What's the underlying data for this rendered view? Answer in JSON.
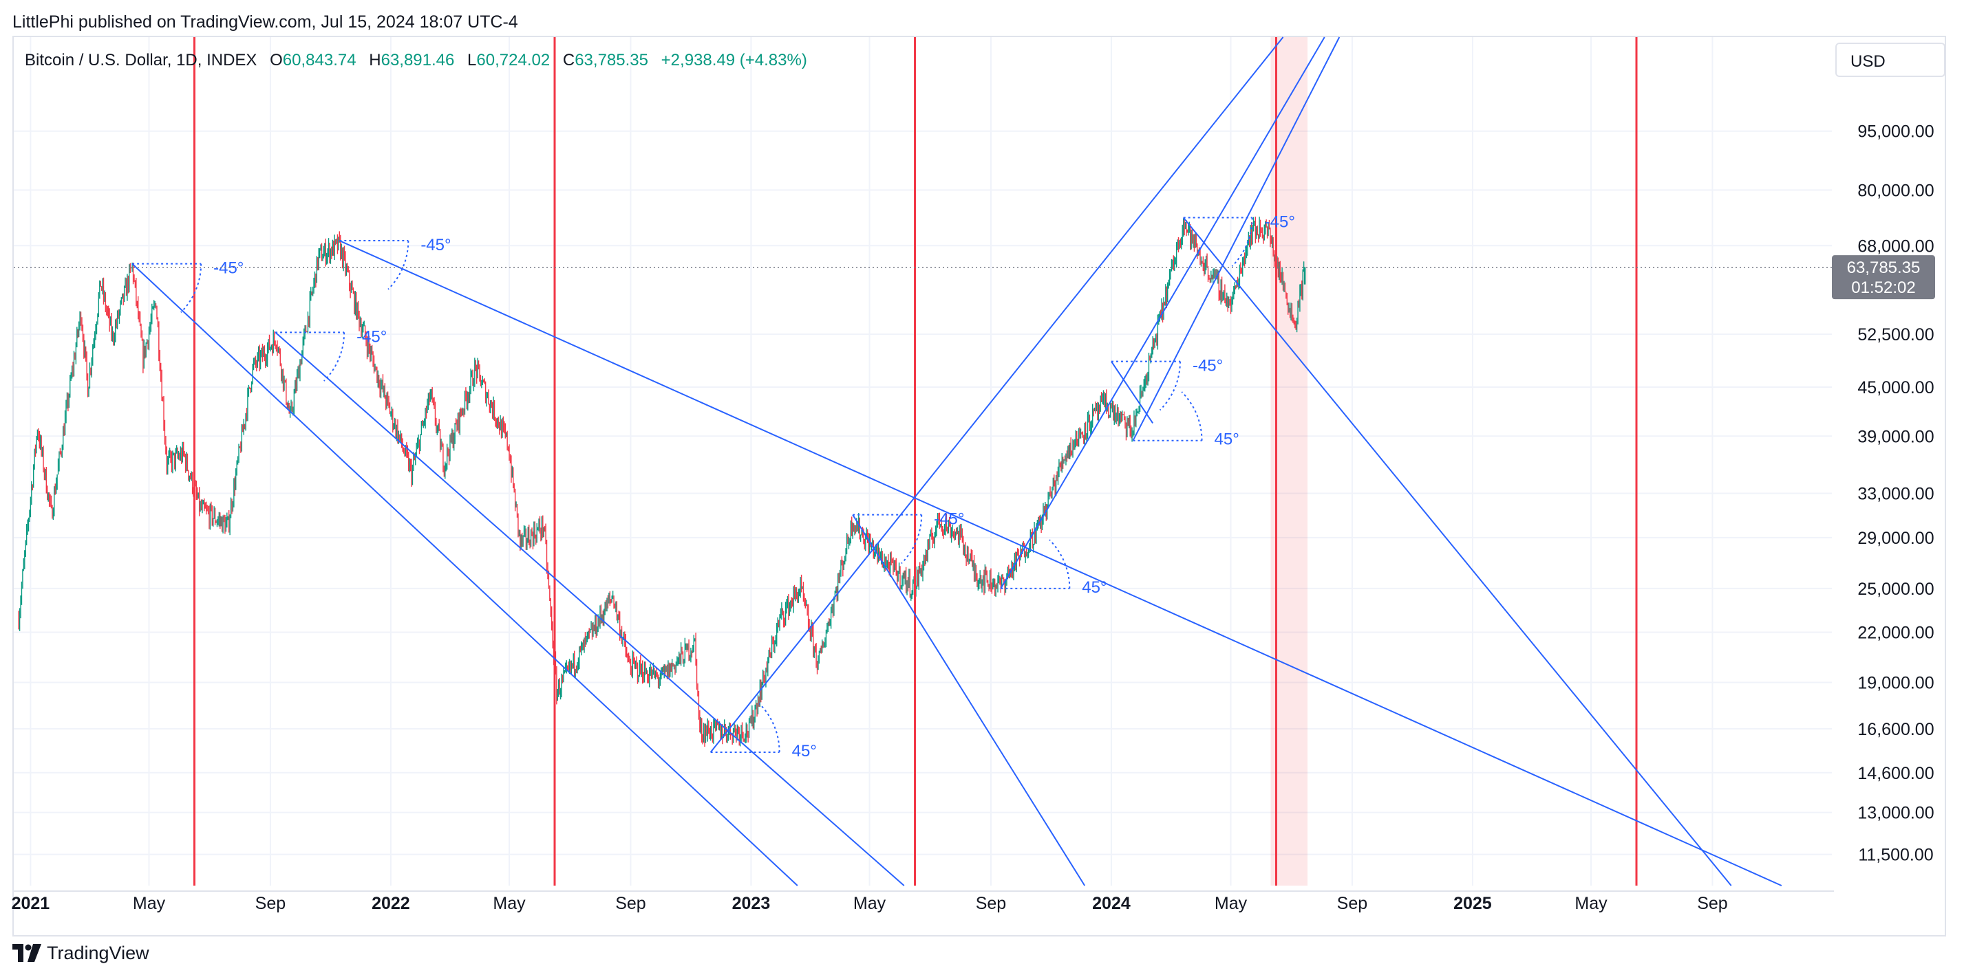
{
  "header": {
    "publisher_line": "LittlePhi published on TradingView.com, Jul 15, 2024 18:07 UTC-4"
  },
  "ohlc": {
    "symbol": "Bitcoin / U.S. Dollar, 1D, INDEX",
    "open_label": "O",
    "open": "60,843.74",
    "high_label": "H",
    "high": "63,891.46",
    "low_label": "L",
    "low": "60,724.02",
    "close_label": "C",
    "close": "63,785.35",
    "change": "+2,938.49 (+4.83%)"
  },
  "currency": "USD",
  "price_tag": {
    "price": "63,785.35",
    "countdown": "01:52:02"
  },
  "footer": {
    "brand": "TradingView"
  },
  "colors": {
    "up": "#089981",
    "down": "#f23645",
    "cycle_line": "#f23645",
    "trend_line": "#2962ff",
    "grid": "#f0f3fa",
    "axis_text": "#131722",
    "price_tag_bg": "#787b86",
    "highlight": "rgba(242,54,69,0.12)"
  },
  "chart_data": {
    "type": "candlestick",
    "title": "Bitcoin / U.S. Dollar, 1D, INDEX",
    "scale": "log",
    "ylim": [
      10500,
      125000
    ],
    "xlim": [
      "2020-12-15",
      "2025-12-31"
    ],
    "y_ticks": [
      {
        "value": 95000,
        "label": "95,000.00"
      },
      {
        "value": 80000,
        "label": "80,000.00"
      },
      {
        "value": 68000,
        "label": "68,000.00"
      },
      {
        "value": 52500,
        "label": "52,500.00"
      },
      {
        "value": 45000,
        "label": "45,000.00"
      },
      {
        "value": 39000,
        "label": "39,000.00"
      },
      {
        "value": 33000,
        "label": "33,000.00"
      },
      {
        "value": 29000,
        "label": "29,000.00"
      },
      {
        "value": 25000,
        "label": "25,000.00"
      },
      {
        "value": 22000,
        "label": "22,000.00"
      },
      {
        "value": 19000,
        "label": "19,000.00"
      },
      {
        "value": 16600,
        "label": "16,600.00"
      },
      {
        "value": 14600,
        "label": "14,600.00"
      },
      {
        "value": 13000,
        "label": "13,000.00"
      },
      {
        "value": 11500,
        "label": "11,500.00"
      }
    ],
    "x_ticks": [
      {
        "date": "2021-01-01",
        "label": "2021",
        "bold": true
      },
      {
        "date": "2021-05-01",
        "label": "May",
        "bold": false
      },
      {
        "date": "2021-09-01",
        "label": "Sep",
        "bold": false
      },
      {
        "date": "2022-01-01",
        "label": "2022",
        "bold": true
      },
      {
        "date": "2022-05-01",
        "label": "May",
        "bold": false
      },
      {
        "date": "2022-09-01",
        "label": "Sep",
        "bold": false
      },
      {
        "date": "2023-01-01",
        "label": "2023",
        "bold": true
      },
      {
        "date": "2023-05-01",
        "label": "May",
        "bold": false
      },
      {
        "date": "2023-09-01",
        "label": "Sep",
        "bold": false
      },
      {
        "date": "2024-01-01",
        "label": "2024",
        "bold": true
      },
      {
        "date": "2024-05-01",
        "label": "May",
        "bold": false
      },
      {
        "date": "2024-09-01",
        "label": "Sep",
        "bold": false
      },
      {
        "date": "2025-01-01",
        "label": "2025",
        "bold": true
      },
      {
        "date": "2025-05-01",
        "label": "May",
        "bold": false
      },
      {
        "date": "2025-09-01",
        "label": "Sep",
        "bold": false
      }
    ],
    "last_price": 63785.35,
    "price_path": [
      [
        "2020-12-20",
        23000
      ],
      [
        "2021-01-08",
        40000
      ],
      [
        "2021-01-22",
        31000
      ],
      [
        "2021-02-21",
        56000
      ],
      [
        "2021-02-28",
        45000
      ],
      [
        "2021-03-13",
        61000
      ],
      [
        "2021-03-25",
        52000
      ],
      [
        "2021-04-14",
        64000
      ],
      [
        "2021-04-25",
        49000
      ],
      [
        "2021-05-08",
        58000
      ],
      [
        "2021-05-19",
        36000
      ],
      [
        "2021-06-05",
        37000
      ],
      [
        "2021-06-22",
        31500
      ],
      [
        "2021-07-20",
        30000
      ],
      [
        "2021-08-14",
        47500
      ],
      [
        "2021-09-07",
        52000
      ],
      [
        "2021-09-21",
        41000
      ],
      [
        "2021-10-20",
        66000
      ],
      [
        "2021-11-10",
        68000
      ],
      [
        "2021-11-28",
        56000
      ],
      [
        "2021-12-20",
        46000
      ],
      [
        "2022-01-22",
        35000
      ],
      [
        "2022-02-10",
        44000
      ],
      [
        "2022-02-24",
        36000
      ],
      [
        "2022-03-28",
        47500
      ],
      [
        "2022-04-30",
        38000
      ],
      [
        "2022-05-12",
        28500
      ],
      [
        "2022-06-05",
        30000
      ],
      [
        "2022-06-18",
        18500
      ],
      [
        "2022-07-15",
        21000
      ],
      [
        "2022-08-14",
        24500
      ],
      [
        "2022-08-30",
        20000
      ],
      [
        "2022-10-01",
        19200
      ],
      [
        "2022-11-05",
        21300
      ],
      [
        "2022-11-10",
        16500
      ],
      [
        "2022-12-30",
        16500
      ],
      [
        "2023-01-31",
        23000
      ],
      [
        "2023-02-20",
        25000
      ],
      [
        "2023-03-10",
        20000
      ],
      [
        "2023-04-14",
        30500
      ],
      [
        "2023-05-10",
        27500
      ],
      [
        "2023-06-15",
        25000
      ],
      [
        "2023-07-10",
        30500
      ],
      [
        "2023-07-31",
        29200
      ],
      [
        "2023-08-17",
        26000
      ],
      [
        "2023-09-11",
        25200
      ],
      [
        "2023-10-20",
        30000
      ],
      [
        "2023-11-15",
        37000
      ],
      [
        "2023-12-25",
        43000
      ],
      [
        "2024-01-22",
        39500
      ],
      [
        "2024-02-15",
        52000
      ],
      [
        "2024-03-14",
        73000
      ],
      [
        "2024-04-02",
        65000
      ],
      [
        "2024-04-17",
        61000
      ],
      [
        "2024-05-01",
        57000
      ],
      [
        "2024-05-21",
        71000
      ],
      [
        "2024-06-07",
        71500
      ],
      [
        "2024-06-24",
        60000
      ],
      [
        "2024-07-05",
        54000
      ],
      [
        "2024-07-15",
        63785
      ]
    ],
    "cycle_lines": [
      "2021-06-16",
      "2022-06-16",
      "2023-06-16",
      "2024-06-16",
      "2025-06-16"
    ],
    "highlight_range": [
      "2024-06-16",
      "2024-07-15"
    ],
    "trend_lines": [
      {
        "from": [
          "2021-04-14",
          64500
        ],
        "to": [
          "2023-02-17",
          10500
        ]
      },
      {
        "from": [
          "2021-09-06",
          52800
        ],
        "to": [
          "2023-06-05",
          10500
        ]
      },
      {
        "from": [
          "2021-11-10",
          69000
        ],
        "to": [
          "2025-11-10",
          10500
        ]
      },
      {
        "from": [
          "2022-11-21",
          15500
        ],
        "to": [
          "2024-06-23",
          125000
        ]
      },
      {
        "from": [
          "2023-04-14",
          31000
        ],
        "to": [
          "2023-12-05",
          10500
        ]
      },
      {
        "from": [
          "2024-03-14",
          73800
        ],
        "to": [
          "2025-09-20",
          10500
        ]
      },
      {
        "from": [
          "2024-01-23",
          38500
        ],
        "to": [
          "2024-08-19",
          125000
        ]
      },
      {
        "from": [
          "2023-09-11",
          25000
        ],
        "to": [
          "2024-08-04",
          125000
        ]
      },
      {
        "from": [
          "2024-01-01",
          48500
        ],
        "to": [
          "2024-02-12",
          40500
        ]
      }
    ],
    "angle_markers": [
      {
        "at": [
          "2021-04-14",
          64500
        ],
        "dir": "down",
        "label": "-45°"
      },
      {
        "at": [
          "2021-11-10",
          69000
        ],
        "dir": "down",
        "label": "-45°"
      },
      {
        "at": [
          "2021-09-06",
          52800
        ],
        "dir": "down",
        "label": "-45°"
      },
      {
        "at": [
          "2022-11-21",
          15500
        ],
        "dir": "up",
        "label": "45°"
      },
      {
        "at": [
          "2023-04-14",
          31000
        ],
        "dir": "down",
        "label": "-45°"
      },
      {
        "at": [
          "2023-09-11",
          25000
        ],
        "dir": "up",
        "label": "45°"
      },
      {
        "at": [
          "2024-01-01",
          48500
        ],
        "dir": "down",
        "label": "-45°"
      },
      {
        "at": [
          "2024-01-23",
          38500
        ],
        "dir": "up",
        "label": "45°"
      },
      {
        "at": [
          "2024-03-14",
          73800
        ],
        "dir": "down",
        "label": "-45°"
      }
    ]
  }
}
